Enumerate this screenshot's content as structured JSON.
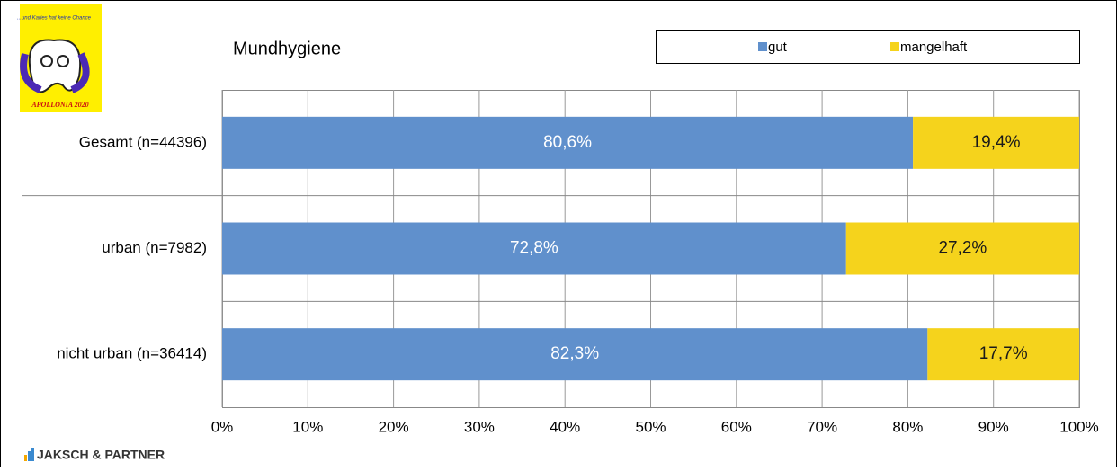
{
  "chart_data": {
    "type": "stacked-barh",
    "title": "Mundhygiene",
    "categories": [
      "Gesamt (n=44396)",
      "urban (n=7982)",
      "nicht urban (n=36414)"
    ],
    "series": [
      {
        "name": "gut",
        "color": "#6090cc",
        "values": [
          80.6,
          72.8,
          82.3
        ],
        "value_labels": [
          "80,6%",
          "72,8%",
          "82,3%"
        ],
        "label_color": "#ffffff"
      },
      {
        "name": "mangelhaft",
        "color": "#f5d31c",
        "values": [
          19.4,
          27.2,
          17.7
        ],
        "value_labels": [
          "19,4%",
          "27,2%",
          "17,7%"
        ],
        "label_color": "#1a1a1a"
      }
    ],
    "xlim": [
      0,
      100
    ],
    "xticks": [
      {
        "value": 0,
        "label": "0%"
      },
      {
        "value": 10,
        "label": "10%"
      },
      {
        "value": 20,
        "label": "20%"
      },
      {
        "value": 30,
        "label": "30%"
      },
      {
        "value": 40,
        "label": "40%"
      },
      {
        "value": 50,
        "label": "50%"
      },
      {
        "value": 60,
        "label": "60%"
      },
      {
        "value": 70,
        "label": "70%"
      },
      {
        "value": 80,
        "label": "80%"
      },
      {
        "value": 90,
        "label": "90%"
      },
      {
        "value": 100,
        "label": "100%"
      }
    ],
    "grid": true,
    "legend": "top-right"
  },
  "logo": {
    "slogan": "...und Karies hat keine Chance",
    "caption": "APOLLONIA 2020"
  },
  "footer": "JAKSCH & PARTNER"
}
